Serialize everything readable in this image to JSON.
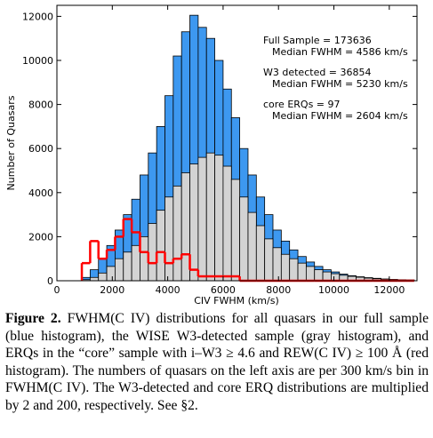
{
  "chart_data": {
    "type": "histogram",
    "xlabel": "CIV FWHM (km/s)",
    "ylabel": "Number of Quasars",
    "bins": [
      900,
      1200,
      1500,
      1800,
      2100,
      2400,
      2700,
      3000,
      3300,
      3600,
      3900,
      4200,
      4500,
      4800,
      5100,
      5400,
      5700,
      6000,
      6300,
      6600,
      6900,
      7200,
      7500,
      7800,
      8100,
      8400,
      8700,
      9000,
      9300,
      9600,
      9900,
      10200,
      10500,
      10800,
      11100,
      11400,
      11700,
      12000,
      12300,
      12600,
      12900
    ],
    "series": [
      {
        "color": "#3d98f0",
        "values": [
          150,
          500,
          1000,
          1600,
          2300,
          3000,
          3700,
          4800,
          5800,
          7000,
          8400,
          10200,
          11300,
          12050,
          11500,
          11000,
          10000,
          8700,
          7400,
          6000,
          4800,
          3800,
          3000,
          2300,
          1800,
          1400,
          1100,
          850,
          650,
          500,
          400,
          300,
          230,
          180,
          140,
          110,
          80,
          60,
          45,
          35
        ]
      },
      {
        "color": "#d3d3d3",
        "values": [
          50,
          150,
          350,
          650,
          1000,
          1300,
          1600,
          2000,
          2600,
          3200,
          3800,
          4300,
          4900,
          5300,
          5600,
          5800,
          5700,
          5200,
          4600,
          3800,
          3100,
          2500,
          1900,
          1500,
          1200,
          1000,
          800,
          650,
          500,
          400,
          320,
          250,
          200,
          160,
          120,
          90,
          70,
          50,
          40,
          30
        ]
      },
      {
        "color": "#ff0000",
        "values": [
          800,
          1800,
          1000,
          1400,
          2000,
          2800,
          2200,
          1300,
          800,
          1300,
          800,
          1000,
          1200,
          500,
          200,
          200,
          200,
          200,
          200,
          0,
          0,
          0,
          0,
          0,
          0,
          0,
          0,
          0,
          0,
          0,
          0,
          0,
          0,
          0,
          0,
          0,
          0,
          0,
          0,
          0
        ]
      }
    ],
    "xlim": [
      0,
      13000
    ],
    "ylim": [
      0,
      12500
    ],
    "xticks": [
      0,
      2000,
      4000,
      6000,
      8000,
      10000,
      12000
    ],
    "yticks": [
      0,
      2000,
      4000,
      6000,
      8000,
      10000,
      12000
    ],
    "annotations": [
      "Full Sample = 173636",
      "Median FWHM = 4586 km/s",
      "W3 detected = 36854",
      "Median FWHM = 5230 km/s",
      "core ERQs = 97",
      "Median FWHM = 2604 km/s"
    ]
  },
  "caption": {
    "label": "Figure 2.",
    "text": "FWHM(C IV) distributions for all quasars in our full sample (blue histogram), the WISE W3-detected sample (gray histogram), and ERQs in the “core” sample with i–W3 ≥ 4.6 and REW(C IV) ≥ 100 Å (red histogram). The numbers of quasars on the left axis are per 300 km/s bin in FWHM(C IV). The W3-detected and core ERQ distributions are multiplied by 2 and 200, respectively. See §2."
  }
}
